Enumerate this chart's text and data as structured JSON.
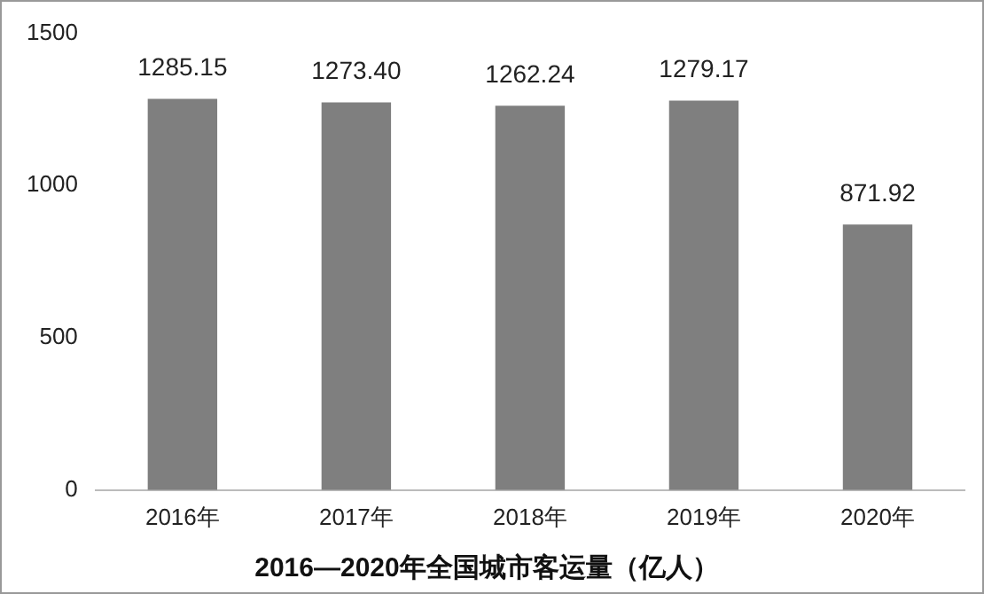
{
  "chart_data": {
    "type": "bar",
    "title": "2016—2020年全国城市客运量（亿人）",
    "categories": [
      "2016年",
      "2017年",
      "2018年",
      "2019年",
      "2020年"
    ],
    "values": [
      1285.15,
      1273.4,
      1262.24,
      1279.17,
      871.92
    ],
    "value_labels": [
      "1285.15",
      "1273.40",
      "1262.24",
      "1279.17",
      "871.92"
    ],
    "color": "#7f7f7f",
    "ylim": [
      0,
      1500
    ],
    "yticks": [
      0,
      500,
      1000,
      1500
    ],
    "grid": false,
    "legend": false
  }
}
